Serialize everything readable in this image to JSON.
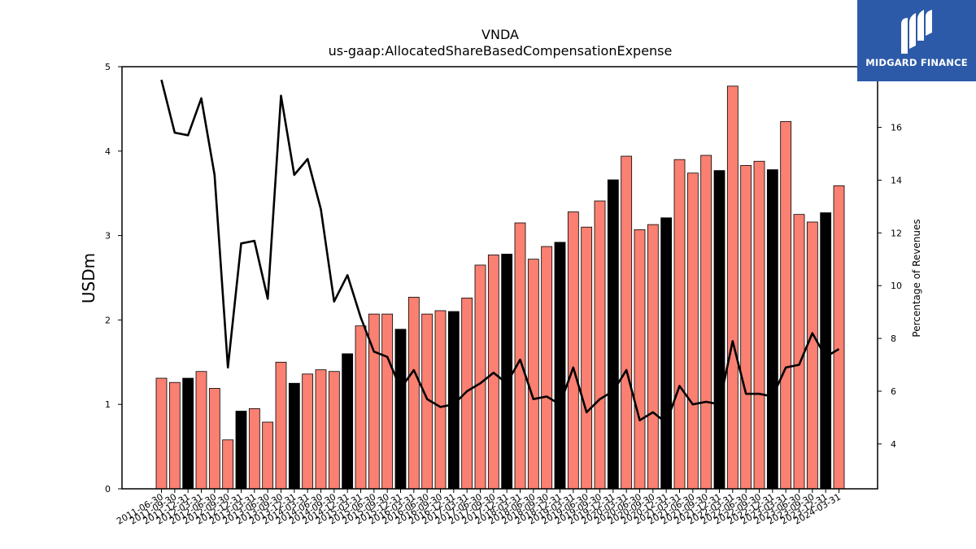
{
  "brand": {
    "name": "MIDGARD FINANCE",
    "logo_icon": "midgard-m-icon",
    "background_color": "#2d5aa8"
  },
  "chart_data": {
    "type": "bar",
    "title": "VNDA",
    "subtitle": "us-gaap:AllocatedShareBasedCompensationExpense",
    "ylabel": "USDm",
    "y2label": "Percentage of Revenues",
    "ylim": [
      0,
      5
    ],
    "y2lim": [
      2.3,
      18.3
    ],
    "yticks": [
      0,
      1,
      2,
      3,
      4,
      5
    ],
    "y2ticks": [
      4,
      6,
      8,
      10,
      12,
      14,
      16
    ],
    "grid": false,
    "colors": {
      "bar_default": "#fa8072",
      "bar_q4": "#000000",
      "line": "#000000",
      "edge": "#000000"
    },
    "categories": [
      "2011-06-30",
      "2011-09-30",
      "2011-12-31",
      "2012-03-31",
      "2012-06-30",
      "2012-09-30",
      "2012-12-31",
      "2013-03-31",
      "2013-06-30",
      "2013-09-30",
      "2013-12-31",
      "2014-03-31",
      "2014-06-30",
      "2014-09-30",
      "2014-12-31",
      "2015-03-31",
      "2015-06-30",
      "2015-09-30",
      "2015-12-31",
      "2016-03-31",
      "2016-06-30",
      "2016-09-30",
      "2016-12-31",
      "2017-03-31",
      "2017-06-30",
      "2017-09-30",
      "2017-12-31",
      "2018-03-31",
      "2018-06-30",
      "2018-09-30",
      "2018-12-31",
      "2019-03-31",
      "2019-06-30",
      "2019-09-30",
      "2019-12-31",
      "2020-03-31",
      "2020-06-30",
      "2020-09-30",
      "2020-12-31",
      "2021-03-31",
      "2021-06-30",
      "2021-09-30",
      "2021-12-31",
      "2022-03-31",
      "2022-06-30",
      "2022-09-30",
      "2022-12-31",
      "2023-03-31",
      "2023-06-30",
      "2023-09-30",
      "2023-12-31",
      "2024-03-31"
    ],
    "series": [
      {
        "kind": "bar",
        "axis": "left",
        "values": [
          1.31,
          1.26,
          1.31,
          1.39,
          1.19,
          0.58,
          0.92,
          0.95,
          0.79,
          1.5,
          1.25,
          1.36,
          1.41,
          1.39,
          1.6,
          1.93,
          2.07,
          2.07,
          1.89,
          2.27,
          2.07,
          2.11,
          2.1,
          2.26,
          2.65,
          2.77,
          2.78,
          3.15,
          2.72,
          2.87,
          2.92,
          3.28,
          3.1,
          3.41,
          3.66,
          3.94,
          3.07,
          3.13,
          3.21,
          3.9,
          3.74,
          3.95,
          3.77,
          4.77,
          3.83,
          3.88,
          3.78,
          4.35,
          3.25,
          3.16,
          3.27,
          3.59
        ],
        "highlight": [
          false,
          false,
          true,
          false,
          false,
          false,
          true,
          false,
          false,
          false,
          true,
          false,
          false,
          false,
          true,
          false,
          false,
          false,
          true,
          false,
          false,
          false,
          true,
          false,
          false,
          false,
          true,
          false,
          false,
          false,
          true,
          false,
          false,
          false,
          true,
          false,
          false,
          false,
          true,
          false,
          false,
          false,
          true,
          false,
          false,
          false,
          true,
          false,
          false,
          false,
          true,
          false
        ]
      },
      {
        "kind": "line",
        "axis": "right",
        "values": [
          17.8,
          15.8,
          15.7,
          17.1,
          14.2,
          6.9,
          11.6,
          11.7,
          9.5,
          17.2,
          14.2,
          14.8,
          12.9,
          9.4,
          10.4,
          8.8,
          7.5,
          7.3,
          6.1,
          6.8,
          5.7,
          5.4,
          5.5,
          6.0,
          6.3,
          6.7,
          6.3,
          7.2,
          5.7,
          5.8,
          5.5,
          6.9,
          5.2,
          5.7,
          6.0,
          6.8,
          4.9,
          5.2,
          4.8,
          6.2,
          5.5,
          5.6,
          5.5,
          7.9,
          5.9,
          5.9,
          5.8,
          6.9,
          7.0,
          8.2,
          7.3,
          7.6
        ]
      }
    ]
  }
}
